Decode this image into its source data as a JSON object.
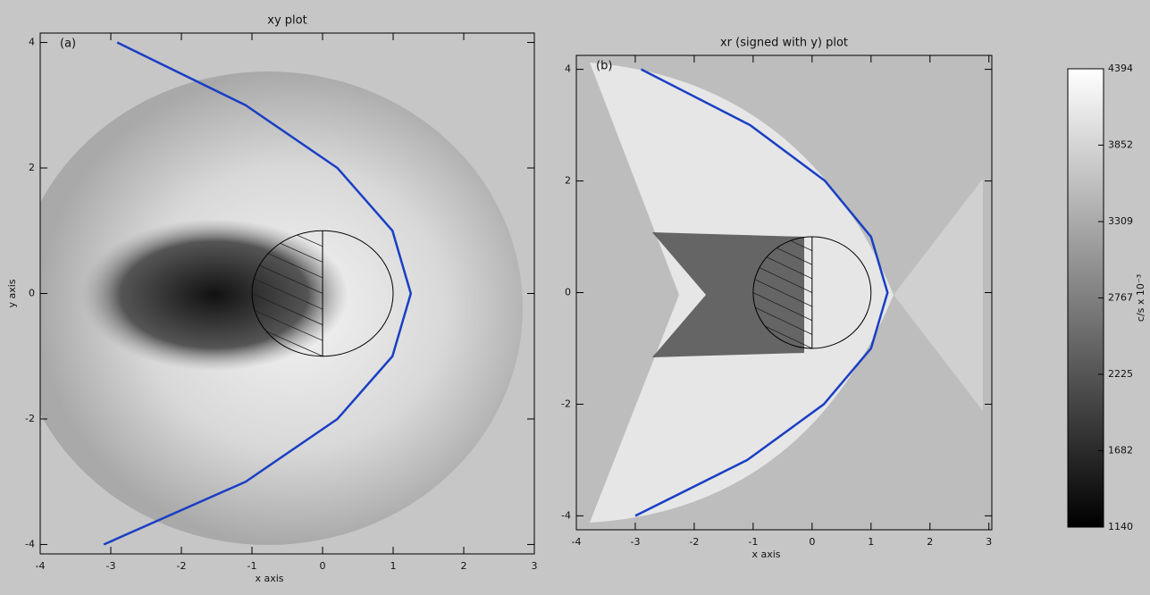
{
  "chart_data": [
    {
      "type": "line",
      "title": "xy plot",
      "panel_label": "(a)",
      "x_label": "x axis",
      "y_label": "y axis",
      "xlim": [
        -4,
        3
      ],
      "ylim": [
        -4.15,
        4.15
      ],
      "xticks": [
        -4,
        -3,
        -2,
        -1,
        0,
        1,
        2,
        3
      ],
      "yticks": [
        -4,
        -2,
        0,
        2,
        4
      ],
      "series": [
        {
          "color": "#1a3fc4",
          "x": [
            -2.91,
            -1.09,
            0.21,
            0.99,
            1.25,
            0.99,
            0.21,
            -1.09,
            -3.1
          ],
          "y": [
            4,
            3,
            2,
            1,
            0,
            -1,
            -2,
            -3,
            -4
          ]
        }
      ],
      "circle_radius": 1
    },
    {
      "type": "line",
      "title": "xr (signed with y) plot",
      "panel_label": "(b)",
      "x_label": "x axis",
      "xlim": [
        -4,
        3.05
      ],
      "ylim": [
        -4.25,
        4.25
      ],
      "xticks": [
        -4,
        -3,
        -2,
        -1,
        0,
        1,
        2,
        3
      ],
      "yticks": [
        -4,
        -2,
        0,
        2,
        4
      ],
      "series": [
        {
          "color": "#1a3fc4",
          "x": [
            -2.9,
            -1.05,
            0.22,
            1.0,
            1.28,
            1.0,
            0.2,
            -1.1,
            -3.0
          ],
          "y": [
            4,
            3,
            2,
            1,
            0,
            -1,
            -2,
            -3,
            -4
          ]
        }
      ],
      "circle_radius": 1
    },
    {
      "type": "colorbar",
      "label": "c/s x 10⁻³",
      "ylim": [
        1140,
        4394
      ],
      "yticks": [
        1140,
        1682,
        2225,
        2767,
        3309,
        3852,
        4394
      ]
    }
  ]
}
